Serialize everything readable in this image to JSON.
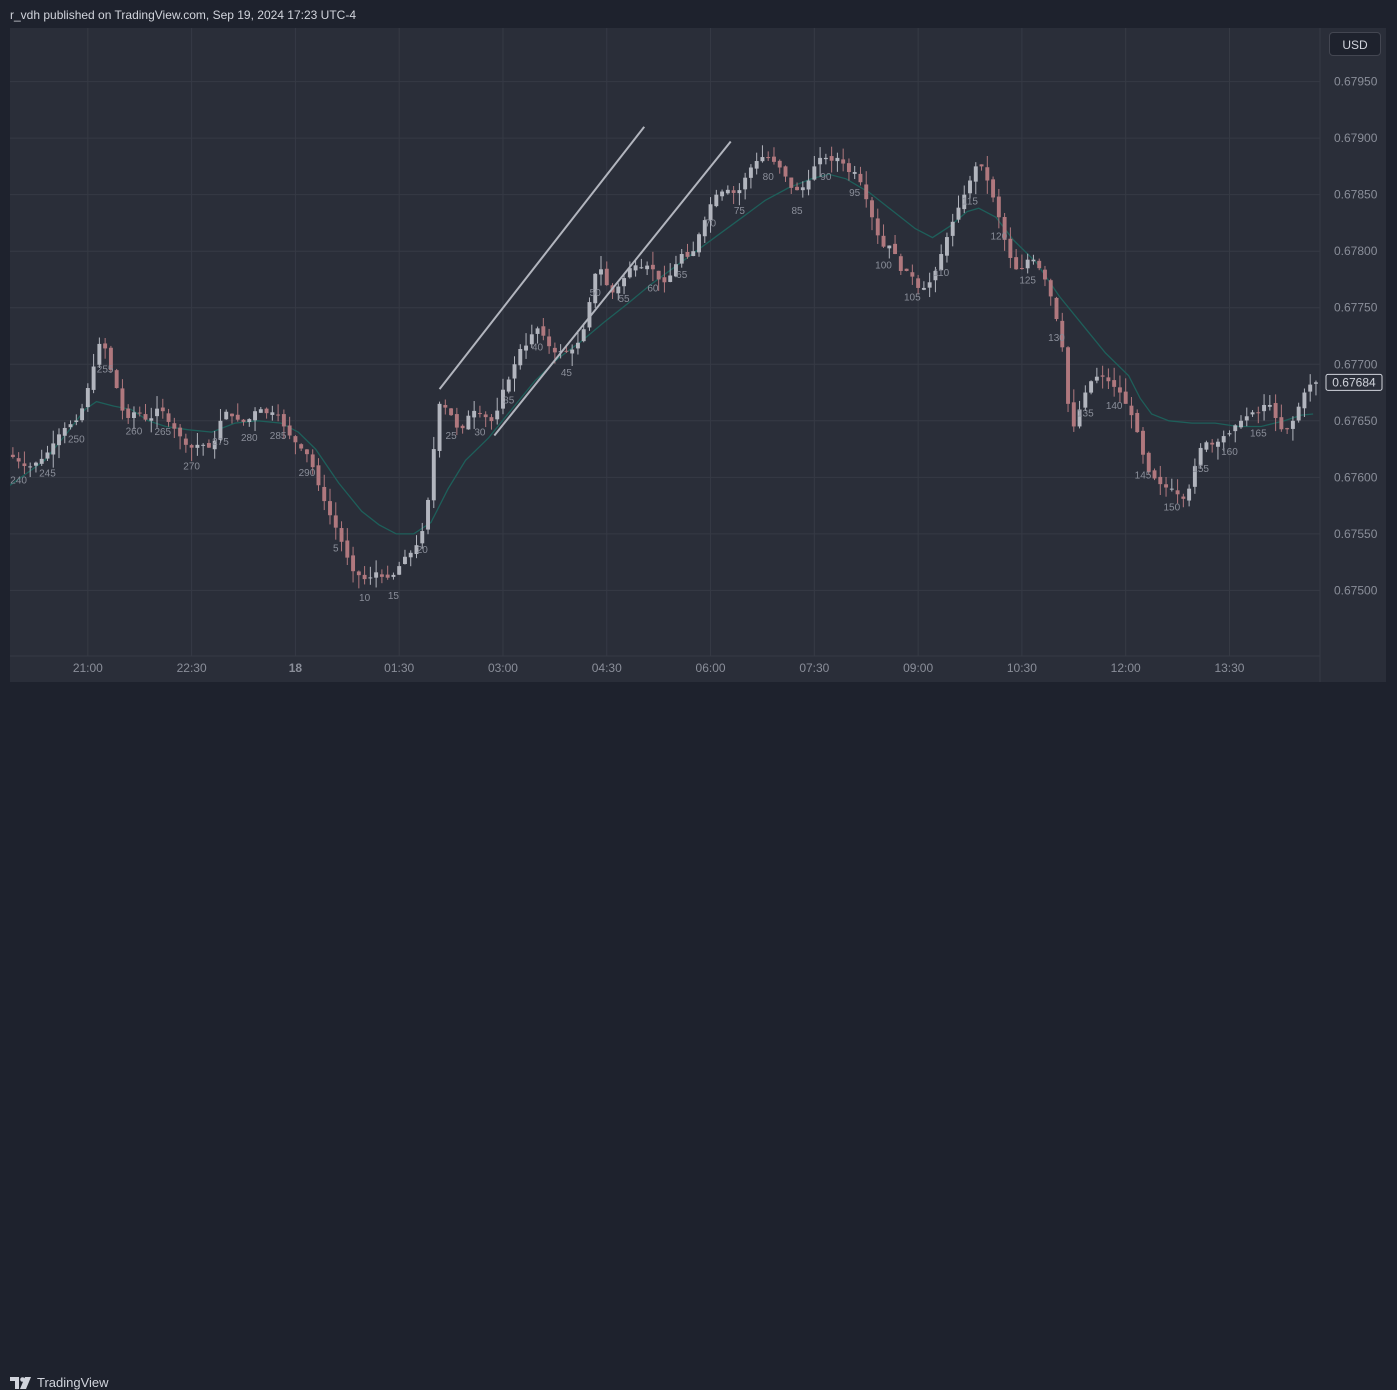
{
  "header": {
    "publisher_text": "r_vdh published on TradingView.com, Sep 19, 2024 17:23 UTC-4"
  },
  "toolbar": {
    "currency_label": "USD"
  },
  "footer": {
    "brand": "TradingView"
  },
  "colors": {
    "background": "#1e222d",
    "pane": "#2a2e39",
    "grid": "#363a45",
    "up": "#b2b5be",
    "down": "#b0787e",
    "ma": "#1e5f5a",
    "channel": "#b2b5be",
    "text": "#d1d4dc",
    "axis_text": "#8a8e99"
  },
  "chart_data": {
    "type": "candlestick",
    "title": "",
    "yaxis": {
      "ticks": [
        "0.67500",
        "0.67550",
        "0.67600",
        "0.67650",
        "0.67700",
        "0.67750",
        "0.67800",
        "0.67850",
        "0.67900",
        "0.67950"
      ],
      "range": [
        0.67442,
        0.67985
      ]
    },
    "xaxis": {
      "ticks": [
        {
          "label": "21:00",
          "bar": 250.5,
          "bold": false
        },
        {
          "label": "22:30",
          "bar": 268.5,
          "bold": false
        },
        {
          "label": "18",
          "bar": 286.5,
          "bold": true
        },
        {
          "label": "01:30",
          "bar": 304.5,
          "bold": false
        },
        {
          "label": "03:00",
          "bar": 322.5,
          "bold": false
        },
        {
          "label": "04:30",
          "bar": 340.5,
          "bold": false
        },
        {
          "label": "06:00",
          "bar": 358.5,
          "bold": false
        },
        {
          "label": "07:30",
          "bar": 376.5,
          "bold": false
        },
        {
          "label": "09:00",
          "bar": 394.5,
          "bold": false
        },
        {
          "label": "10:30",
          "bar": 412.5,
          "bold": false
        },
        {
          "label": "12:00",
          "bar": 430.5,
          "bold": false
        },
        {
          "label": "13:30",
          "bar": 448.5,
          "bold": false
        }
      ]
    },
    "last_price": "0.67684",
    "price_path": [
      [
        237,
        0.6762
      ],
      [
        240,
        0.67608
      ],
      [
        243,
        0.67618
      ],
      [
        246,
        0.67642
      ],
      [
        249,
        0.67652
      ],
      [
        251,
        0.67688
      ],
      [
        252,
        0.67708
      ],
      [
        253,
        0.67728
      ],
      [
        254,
        0.677
      ],
      [
        255,
        0.6769
      ],
      [
        256,
        0.67668
      ],
      [
        257,
        0.6765
      ],
      [
        259,
        0.6766
      ],
      [
        261,
        0.67648
      ],
      [
        263,
        0.67665
      ],
      [
        264,
        0.67652
      ],
      [
        266,
        0.6764
      ],
      [
        268,
        0.67625
      ],
      [
        270,
        0.6763
      ],
      [
        272,
        0.67625
      ],
      [
        273,
        0.6764
      ],
      [
        274,
        0.6766
      ],
      [
        276,
        0.67652
      ],
      [
        278,
        0.67648
      ],
      [
        280,
        0.67662
      ],
      [
        282,
        0.67655
      ],
      [
        283,
        0.6766
      ],
      [
        285,
        0.6764
      ],
      [
        287,
        0.67628
      ],
      [
        289,
        0.67618
      ],
      [
        290,
        0.676
      ],
      [
        292,
        0.67572
      ],
      [
        294,
        0.6755
      ],
      [
        296,
        0.67522
      ],
      [
        297,
        0.67512
      ],
      [
        298,
        0.67515
      ],
      [
        299,
        0.67505
      ],
      [
        300,
        0.67518
      ],
      [
        302,
        0.6751
      ],
      [
        304,
        0.67515
      ],
      [
        305,
        0.67528
      ],
      [
        307,
        0.67535
      ],
      [
        308,
        0.67545
      ],
      [
        309,
        0.6756
      ],
      [
        310,
        0.676
      ],
      [
        311,
        0.6765
      ],
      [
        311.5,
        0.67665
      ],
      [
        313,
        0.6766
      ],
      [
        314,
        0.6765
      ],
      [
        315,
        0.67638
      ],
      [
        317,
        0.6766
      ],
      [
        319,
        0.67655
      ],
      [
        321,
        0.67648
      ],
      [
        322,
        0.6767
      ],
      [
        323,
        0.67685
      ],
      [
        324,
        0.67688
      ],
      [
        325,
        0.67712
      ],
      [
        327,
        0.67718
      ],
      [
        328,
        0.67735
      ],
      [
        330,
        0.67722
      ],
      [
        331,
        0.6771
      ],
      [
        333,
        0.67712
      ],
      [
        334,
        0.6771
      ],
      [
        336,
        0.67722
      ],
      [
        337,
        0.6774
      ],
      [
        338,
        0.6777
      ],
      [
        339,
        0.6779
      ],
      [
        340,
        0.67778
      ],
      [
        341,
        0.67762
      ],
      [
        342,
        0.67765
      ],
      [
        344,
        0.6778
      ],
      [
        345,
        0.6779
      ],
      [
        346,
        0.67785
      ],
      [
        348,
        0.67788
      ],
      [
        349,
        0.6778
      ],
      [
        350,
        0.6777
      ],
      [
        351,
        0.67775
      ],
      [
        352,
        0.67782
      ],
      [
        353,
        0.67795
      ],
      [
        354,
        0.678
      ],
      [
        355,
        0.6779
      ],
      [
        356,
        0.6781
      ],
      [
        357,
        0.6782
      ],
      [
        358,
        0.67835
      ],
      [
        359,
        0.67848
      ],
      [
        360,
        0.67852
      ],
      [
        362,
        0.67855
      ],
      [
        363,
        0.67848
      ],
      [
        364,
        0.6786
      ],
      [
        365,
        0.6787
      ],
      [
        366,
        0.67878
      ],
      [
        368,
        0.67885
      ],
      [
        369,
        0.6788
      ],
      [
        370,
        0.67878
      ],
      [
        371,
        0.6787
      ],
      [
        372,
        0.67862
      ],
      [
        373,
        0.6785
      ],
      [
        374,
        0.67858
      ],
      [
        375,
        0.67855
      ],
      [
        376,
        0.6787
      ],
      [
        377,
        0.6788
      ],
      [
        378,
        0.67885
      ],
      [
        379,
        0.6788
      ],
      [
        380,
        0.6788
      ],
      [
        381,
        0.67885
      ],
      [
        382,
        0.6787
      ],
      [
        384,
        0.6787
      ],
      [
        385,
        0.67852
      ],
      [
        386,
        0.6784
      ],
      [
        387,
        0.6782
      ],
      [
        388,
        0.67808
      ],
      [
        389,
        0.678
      ],
      [
        390,
        0.6781
      ],
      [
        391,
        0.67785
      ],
      [
        392,
        0.6778
      ],
      [
        393,
        0.67785
      ],
      [
        394,
        0.6777
      ],
      [
        395,
        0.67765
      ],
      [
        396,
        0.6777
      ],
      [
        397,
        0.67775
      ],
      [
        398,
        0.6779
      ],
      [
        399,
        0.67805
      ],
      [
        400,
        0.6782
      ],
      [
        401,
        0.67832
      ],
      [
        402,
        0.67845
      ],
      [
        403,
        0.67855
      ],
      [
        404,
        0.6787
      ],
      [
        405,
        0.6788
      ],
      [
        406,
        0.6787
      ],
      [
        407,
        0.67855
      ],
      [
        408,
        0.6784
      ],
      [
        409,
        0.6782
      ],
      [
        410,
        0.678
      ],
      [
        411,
        0.67788
      ],
      [
        412,
        0.6778
      ],
      [
        413,
        0.6779
      ],
      [
        414,
        0.67795
      ],
      [
        415,
        0.6779
      ],
      [
        416,
        0.6778
      ],
      [
        417,
        0.6777
      ],
      [
        418,
        0.6775
      ],
      [
        419,
        0.6773
      ],
      [
        420,
        0.677
      ],
      [
        420.5,
        0.67665
      ],
      [
        421,
        0.6764
      ],
      [
        422,
        0.6765
      ],
      [
        423,
        0.6767
      ],
      [
        424,
        0.6768
      ],
      [
        425,
        0.6769
      ],
      [
        426,
        0.67688
      ],
      [
        427,
        0.6769
      ],
      [
        428,
        0.6768
      ],
      [
        429,
        0.6768
      ],
      [
        430,
        0.6767
      ],
      [
        431,
        0.6766
      ],
      [
        432,
        0.6765
      ],
      [
        433,
        0.6763
      ],
      [
        434,
        0.6761
      ],
      [
        435,
        0.676
      ],
      [
        436,
        0.67598
      ],
      [
        437,
        0.6759
      ],
      [
        438,
        0.67592
      ],
      [
        439,
        0.67588
      ],
      [
        440,
        0.67582
      ],
      [
        441,
        0.6758
      ],
      [
        442,
        0.676
      ],
      [
        443,
        0.6762
      ],
      [
        444,
        0.67632
      ],
      [
        445,
        0.6763
      ],
      [
        446,
        0.67628
      ],
      [
        447,
        0.67635
      ],
      [
        448,
        0.67638
      ],
      [
        449,
        0.6764
      ],
      [
        450,
        0.67652
      ],
      [
        451,
        0.67648
      ],
      [
        452,
        0.6766
      ],
      [
        453,
        0.67655
      ],
      [
        454,
        0.6766
      ],
      [
        455,
        0.67668
      ],
      [
        456,
        0.6766
      ],
      [
        457,
        0.67645
      ],
      [
        458,
        0.6764
      ],
      [
        459,
        0.67645
      ],
      [
        460,
        0.67655
      ],
      [
        461,
        0.6767
      ],
      [
        462,
        0.6768
      ],
      [
        463,
        0.67684
      ]
    ],
    "ma_path": [
      [
        237,
        0.67593
      ],
      [
        243,
        0.67615
      ],
      [
        247,
        0.6764
      ],
      [
        250,
        0.6766
      ],
      [
        252,
        0.67667
      ],
      [
        255,
        0.67663
      ],
      [
        258,
        0.6766
      ],
      [
        261,
        0.6765
      ],
      [
        264,
        0.67645
      ],
      [
        268,
        0.67642
      ],
      [
        272,
        0.6764
      ],
      [
        276,
        0.67648
      ],
      [
        280,
        0.6765
      ],
      [
        284,
        0.67648
      ],
      [
        287,
        0.6764
      ],
      [
        290,
        0.67625
      ],
      [
        294,
        0.67595
      ],
      [
        298,
        0.6757
      ],
      [
        301,
        0.67558
      ],
      [
        304,
        0.6755
      ],
      [
        307,
        0.6755
      ],
      [
        310,
        0.6756
      ],
      [
        313,
        0.6759
      ],
      [
        316,
        0.67615
      ],
      [
        320,
        0.67635
      ],
      [
        324,
        0.6766
      ],
      [
        328,
        0.67685
      ],
      [
        332,
        0.67705
      ],
      [
        336,
        0.6772
      ],
      [
        340,
        0.67737
      ],
      [
        344,
        0.67753
      ],
      [
        348,
        0.6777
      ],
      [
        352,
        0.67785
      ],
      [
        356,
        0.678
      ],
      [
        360,
        0.67815
      ],
      [
        364,
        0.6783
      ],
      [
        368,
        0.67845
      ],
      [
        372,
        0.67856
      ],
      [
        376,
        0.67864
      ],
      [
        379,
        0.67868
      ],
      [
        382,
        0.67864
      ],
      [
        386,
        0.67852
      ],
      [
        390,
        0.67836
      ],
      [
        394,
        0.6782
      ],
      [
        397,
        0.67812
      ],
      [
        400,
        0.67822
      ],
      [
        403,
        0.67835
      ],
      [
        405,
        0.67838
      ],
      [
        408,
        0.6783
      ],
      [
        411,
        0.6781
      ],
      [
        415,
        0.6779
      ],
      [
        419,
        0.6776
      ],
      [
        423,
        0.67735
      ],
      [
        427,
        0.6771
      ],
      [
        431,
        0.6769
      ],
      [
        433,
        0.6767
      ],
      [
        435,
        0.67656
      ],
      [
        438,
        0.6765
      ],
      [
        442,
        0.67648
      ],
      [
        446,
        0.67648
      ],
      [
        450,
        0.67645
      ],
      [
        454,
        0.67645
      ],
      [
        458,
        0.6765
      ],
      [
        461,
        0.67655
      ],
      [
        463,
        0.67656
      ]
    ],
    "bar_count_labels": {
      "start": 240,
      "step": 5,
      "end": 165,
      "wrap_after": 290,
      "wrap_to": 5
    },
    "channel_lines": [
      {
        "from": [
          311.5,
          0.67678
        ],
        "to": [
          347,
          0.6791
        ]
      },
      {
        "from": [
          321,
          0.67637
        ],
        "to": [
          362,
          0.67897
        ]
      }
    ]
  }
}
